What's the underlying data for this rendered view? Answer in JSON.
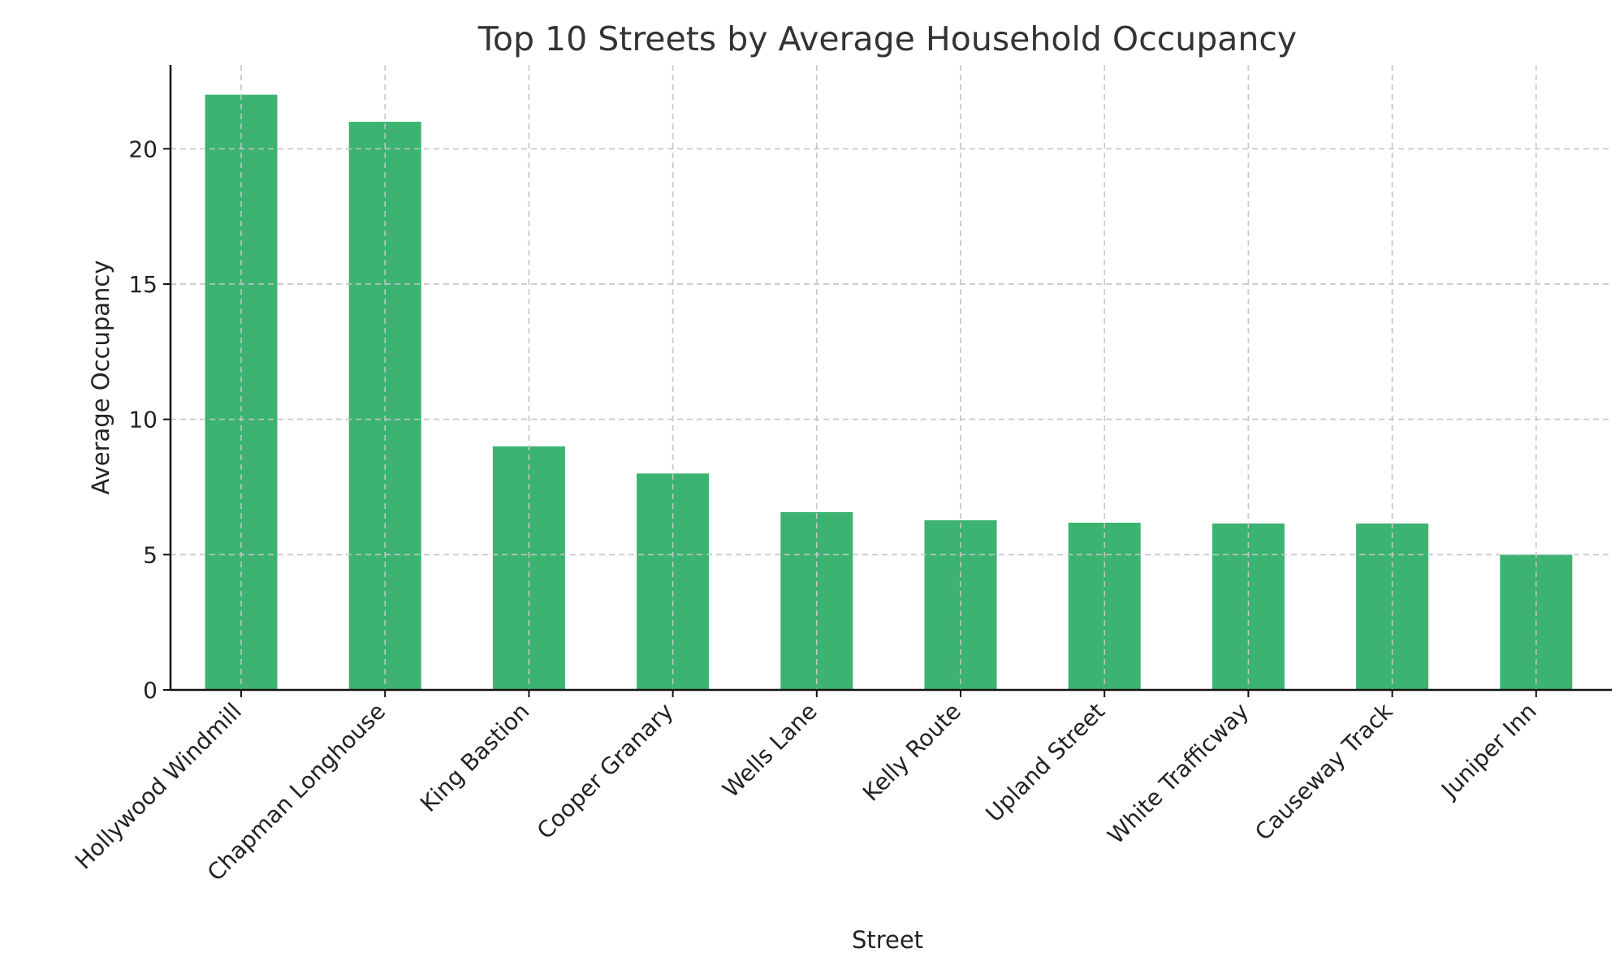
{
  "chart_data": {
    "type": "bar",
    "title": "Top 10 Streets by Average Household Occupancy",
    "xlabel": "Street",
    "ylabel": "Average Occupancy",
    "categories": [
      "Hollywood Windmill",
      "Chapman Longhouse",
      "King Bastion",
      "Cooper Granary",
      "Wells Lane",
      "Kelly Route",
      "Upland Street",
      "White Trafficway",
      "Causeway Track",
      "Juniper Inn"
    ],
    "values": [
      22,
      21,
      9,
      8,
      6.57,
      6.27,
      6.18,
      6.15,
      6.15,
      5
    ],
    "ylim": [
      0,
      23.1
    ],
    "yticks": [
      0,
      5,
      10,
      15,
      20
    ],
    "grid": true,
    "bar_color": "#3cb371"
  }
}
